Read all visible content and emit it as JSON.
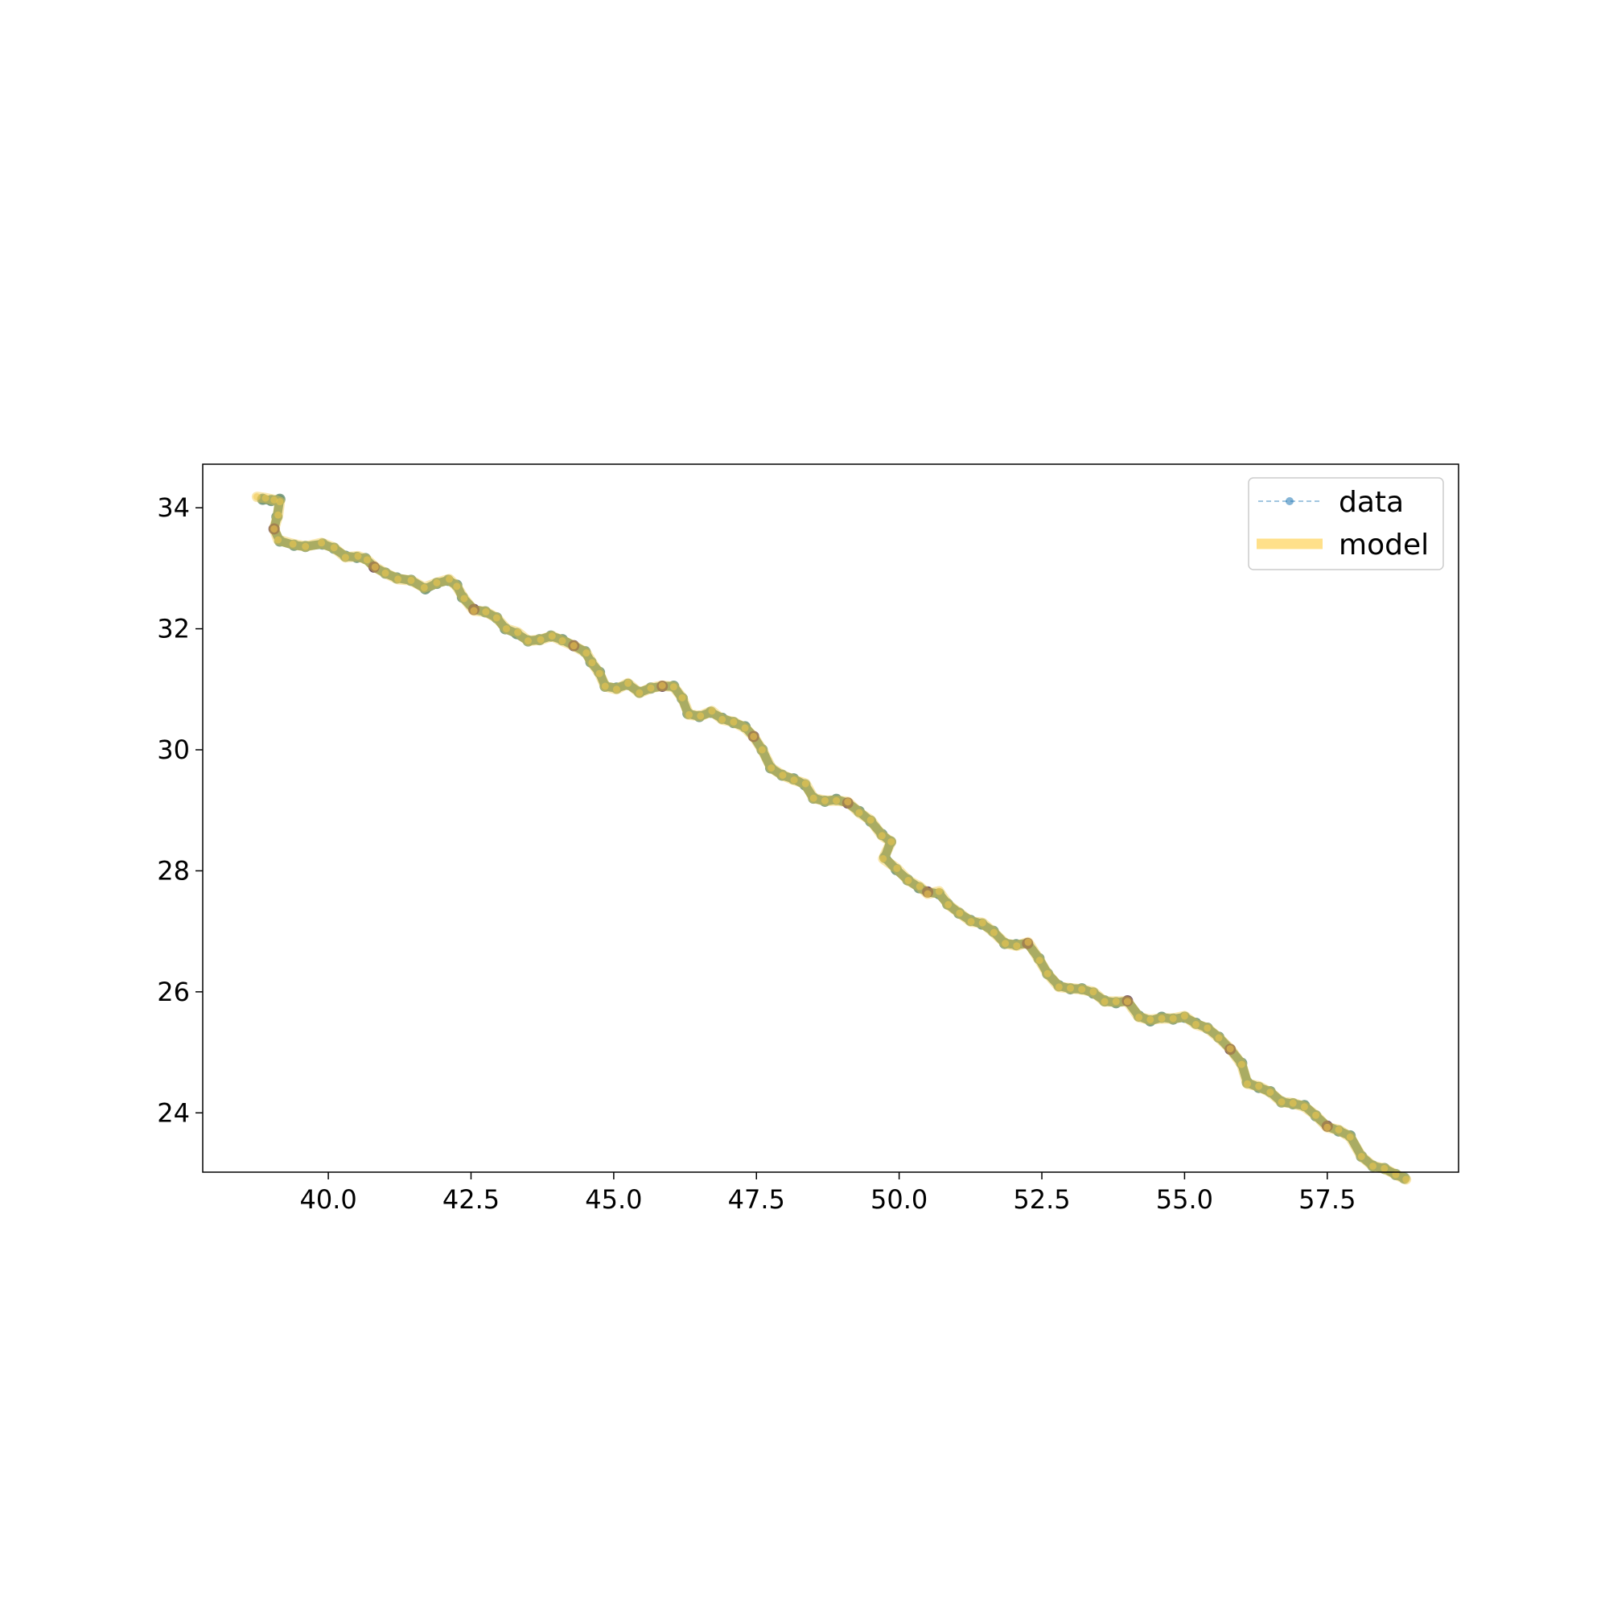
{
  "chart_data": {
    "type": "line",
    "title": "",
    "xlabel": "",
    "ylabel": "",
    "xlim": [
      37.8,
      59.8
    ],
    "ylim": [
      23.02,
      34.72
    ],
    "x_ticks": [
      "40.0",
      "42.5",
      "45.0",
      "47.5",
      "50.0",
      "52.5",
      "55.0",
      "57.5"
    ],
    "y_ticks": [
      "24",
      "26",
      "28",
      "30",
      "32",
      "34"
    ],
    "grid": false,
    "legend": {
      "placement": "top-right",
      "entries": [
        {
          "label": "data",
          "style": "dashed line with circle markers",
          "color": "#1f77b4"
        },
        {
          "label": "model",
          "style": "thick line",
          "color": "#ffd966"
        }
      ]
    },
    "colors": {
      "data_marker": "#6f9477",
      "data_marker_dark": "#5e3a4e",
      "data_line": "#1f77b4",
      "model": "#f2c94c",
      "model_legend": "#ffe08a"
    },
    "series": [
      {
        "name": "data",
        "style": "markers",
        "points": [
          [
            38.85,
            34.14
          ],
          [
            39.0,
            34.12
          ],
          [
            39.15,
            34.14
          ],
          [
            39.1,
            33.85
          ],
          [
            39.05,
            33.65
          ],
          [
            39.15,
            33.45
          ],
          [
            39.4,
            33.38
          ],
          [
            39.6,
            33.36
          ],
          [
            39.9,
            33.4
          ],
          [
            40.1,
            33.33
          ],
          [
            40.3,
            33.2
          ],
          [
            40.5,
            33.18
          ],
          [
            40.65,
            33.16
          ],
          [
            40.8,
            33.02
          ],
          [
            41.0,
            32.92
          ],
          [
            41.2,
            32.84
          ],
          [
            41.45,
            32.8
          ],
          [
            41.7,
            32.66
          ],
          [
            41.9,
            32.75
          ],
          [
            42.1,
            32.8
          ],
          [
            42.25,
            32.72
          ],
          [
            42.35,
            32.52
          ],
          [
            42.55,
            32.32
          ],
          [
            42.75,
            32.28
          ],
          [
            42.95,
            32.18
          ],
          [
            43.1,
            32.0
          ],
          [
            43.3,
            31.92
          ],
          [
            43.5,
            31.8
          ],
          [
            43.7,
            31.82
          ],
          [
            43.9,
            31.88
          ],
          [
            44.1,
            31.82
          ],
          [
            44.3,
            31.72
          ],
          [
            44.5,
            31.62
          ],
          [
            44.6,
            31.45
          ],
          [
            44.75,
            31.28
          ],
          [
            44.85,
            31.05
          ],
          [
            45.05,
            31.02
          ],
          [
            45.25,
            31.08
          ],
          [
            45.45,
            30.95
          ],
          [
            45.65,
            31.02
          ],
          [
            45.85,
            31.05
          ],
          [
            46.05,
            31.05
          ],
          [
            46.2,
            30.85
          ],
          [
            46.3,
            30.6
          ],
          [
            46.5,
            30.55
          ],
          [
            46.7,
            30.62
          ],
          [
            46.9,
            30.52
          ],
          [
            47.1,
            30.45
          ],
          [
            47.3,
            30.38
          ],
          [
            47.45,
            30.22
          ],
          [
            47.6,
            30.0
          ],
          [
            47.75,
            29.7
          ],
          [
            47.95,
            29.58
          ],
          [
            48.15,
            29.52
          ],
          [
            48.35,
            29.42
          ],
          [
            48.5,
            29.2
          ],
          [
            48.7,
            29.15
          ],
          [
            48.9,
            29.18
          ],
          [
            49.1,
            29.12
          ],
          [
            49.3,
            28.98
          ],
          [
            49.5,
            28.82
          ],
          [
            49.7,
            28.6
          ],
          [
            49.85,
            28.48
          ],
          [
            49.75,
            28.22
          ],
          [
            49.95,
            28.02
          ],
          [
            50.15,
            27.85
          ],
          [
            50.35,
            27.72
          ],
          [
            50.5,
            27.65
          ],
          [
            50.7,
            27.62
          ],
          [
            50.85,
            27.45
          ],
          [
            51.05,
            27.3
          ],
          [
            51.25,
            27.18
          ],
          [
            51.45,
            27.12
          ],
          [
            51.65,
            27.0
          ],
          [
            51.85,
            26.8
          ],
          [
            52.05,
            26.78
          ],
          [
            52.25,
            26.8
          ],
          [
            52.45,
            26.55
          ],
          [
            52.6,
            26.3
          ],
          [
            52.8,
            26.1
          ],
          [
            53.0,
            26.05
          ],
          [
            53.2,
            26.05
          ],
          [
            53.4,
            25.98
          ],
          [
            53.6,
            25.85
          ],
          [
            53.8,
            25.82
          ],
          [
            54.0,
            25.85
          ],
          [
            54.2,
            25.6
          ],
          [
            54.4,
            25.52
          ],
          [
            54.6,
            25.58
          ],
          [
            54.8,
            25.55
          ],
          [
            55.0,
            25.58
          ],
          [
            55.2,
            25.48
          ],
          [
            55.4,
            25.4
          ],
          [
            55.6,
            25.25
          ],
          [
            55.8,
            25.05
          ],
          [
            56.0,
            24.82
          ],
          [
            56.1,
            24.5
          ],
          [
            56.3,
            24.42
          ],
          [
            56.5,
            24.35
          ],
          [
            56.7,
            24.18
          ],
          [
            56.9,
            24.15
          ],
          [
            57.1,
            24.12
          ],
          [
            57.3,
            23.95
          ],
          [
            57.5,
            23.78
          ],
          [
            57.7,
            23.7
          ],
          [
            57.9,
            23.62
          ],
          [
            58.1,
            23.28
          ],
          [
            58.3,
            23.12
          ],
          [
            58.5,
            23.08
          ],
          [
            58.7,
            22.98
          ],
          [
            58.85,
            22.92
          ]
        ]
      },
      {
        "name": "model",
        "style": "thick line",
        "points": [
          [
            38.75,
            34.18
          ],
          [
            38.9,
            34.16
          ],
          [
            39.05,
            34.13
          ],
          [
            39.15,
            34.1
          ],
          [
            39.12,
            33.88
          ],
          [
            39.05,
            33.65
          ],
          [
            39.12,
            33.47
          ],
          [
            39.38,
            33.4
          ],
          [
            39.6,
            33.36
          ],
          [
            39.88,
            33.42
          ],
          [
            40.1,
            33.34
          ],
          [
            40.3,
            33.18
          ],
          [
            40.52,
            33.2
          ],
          [
            40.68,
            33.14
          ],
          [
            40.82,
            33.02
          ],
          [
            41.0,
            32.92
          ],
          [
            41.22,
            32.82
          ],
          [
            41.45,
            32.8
          ],
          [
            41.68,
            32.68
          ],
          [
            41.9,
            32.76
          ],
          [
            42.12,
            32.82
          ],
          [
            42.25,
            32.7
          ],
          [
            42.38,
            32.5
          ],
          [
            42.55,
            32.3
          ],
          [
            42.76,
            32.28
          ],
          [
            42.95,
            32.18
          ],
          [
            43.12,
            32.0
          ],
          [
            43.32,
            31.94
          ],
          [
            43.5,
            31.8
          ],
          [
            43.72,
            31.82
          ],
          [
            43.92,
            31.88
          ],
          [
            44.1,
            31.8
          ],
          [
            44.3,
            31.72
          ],
          [
            44.52,
            31.6
          ],
          [
            44.62,
            31.44
          ],
          [
            44.75,
            31.26
          ],
          [
            44.85,
            31.05
          ],
          [
            45.05,
            31.0
          ],
          [
            45.25,
            31.1
          ],
          [
            45.45,
            30.94
          ],
          [
            45.65,
            31.02
          ],
          [
            45.85,
            31.06
          ],
          [
            46.05,
            31.04
          ],
          [
            46.2,
            30.86
          ],
          [
            46.32,
            30.58
          ],
          [
            46.52,
            30.56
          ],
          [
            46.72,
            30.64
          ],
          [
            46.9,
            30.5
          ],
          [
            47.1,
            30.46
          ],
          [
            47.3,
            30.36
          ],
          [
            47.45,
            30.22
          ],
          [
            47.6,
            30.0
          ],
          [
            47.76,
            29.7
          ],
          [
            47.96,
            29.58
          ],
          [
            48.16,
            29.5
          ],
          [
            48.36,
            29.44
          ],
          [
            48.5,
            29.2
          ],
          [
            48.7,
            29.16
          ],
          [
            48.9,
            29.16
          ],
          [
            49.1,
            29.14
          ],
          [
            49.3,
            28.96
          ],
          [
            49.5,
            28.84
          ],
          [
            49.7,
            28.58
          ],
          [
            49.86,
            28.48
          ],
          [
            49.72,
            28.2
          ],
          [
            49.96,
            28.04
          ],
          [
            50.16,
            27.84
          ],
          [
            50.36,
            27.74
          ],
          [
            50.5,
            27.62
          ],
          [
            50.7,
            27.66
          ],
          [
            50.86,
            27.44
          ],
          [
            51.06,
            27.3
          ],
          [
            51.26,
            27.16
          ],
          [
            51.46,
            27.14
          ],
          [
            51.66,
            26.98
          ],
          [
            51.86,
            26.8
          ],
          [
            52.06,
            26.76
          ],
          [
            52.26,
            26.82
          ],
          [
            52.46,
            26.52
          ],
          [
            52.6,
            26.3
          ],
          [
            52.8,
            26.08
          ],
          [
            53.0,
            26.06
          ],
          [
            53.2,
            26.04
          ],
          [
            53.4,
            26.0
          ],
          [
            53.6,
            25.84
          ],
          [
            53.8,
            25.84
          ],
          [
            54.0,
            25.84
          ],
          [
            54.2,
            25.58
          ],
          [
            54.4,
            25.54
          ],
          [
            54.6,
            25.56
          ],
          [
            54.8,
            25.56
          ],
          [
            55.0,
            25.6
          ],
          [
            55.2,
            25.46
          ],
          [
            55.4,
            25.4
          ],
          [
            55.6,
            25.24
          ],
          [
            55.8,
            25.06
          ],
          [
            56.0,
            24.8
          ],
          [
            56.1,
            24.48
          ],
          [
            56.3,
            24.44
          ],
          [
            56.5,
            24.34
          ],
          [
            56.7,
            24.18
          ],
          [
            56.9,
            24.16
          ],
          [
            57.1,
            24.1
          ],
          [
            57.3,
            23.96
          ],
          [
            57.5,
            23.76
          ],
          [
            57.7,
            23.72
          ],
          [
            57.9,
            23.6
          ],
          [
            58.1,
            23.28
          ],
          [
            58.3,
            23.12
          ],
          [
            58.5,
            23.08
          ],
          [
            58.7,
            22.98
          ],
          [
            58.88,
            22.9
          ]
        ]
      }
    ]
  }
}
